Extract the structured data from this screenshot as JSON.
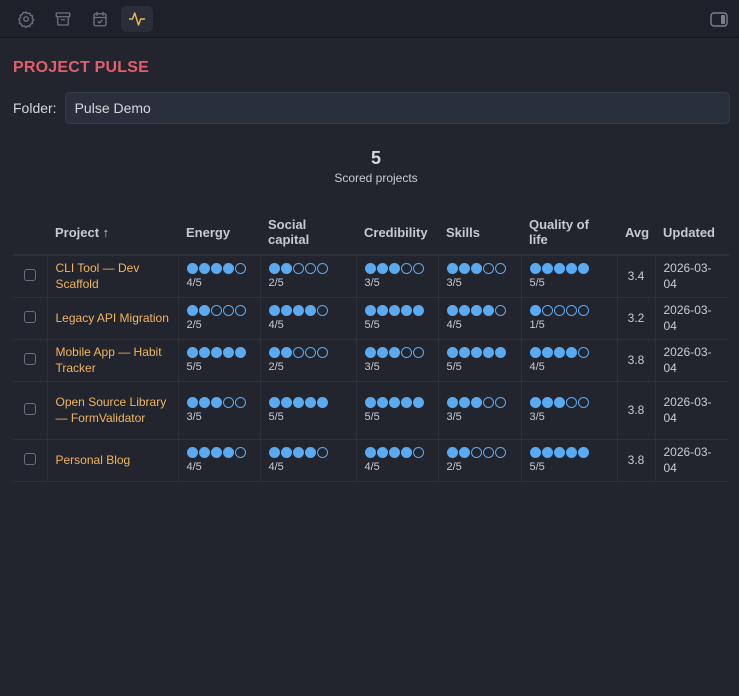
{
  "toolbar": {
    "buttons": [
      {
        "name": "settings",
        "icon": "gear-icon",
        "active": false
      },
      {
        "name": "archive",
        "icon": "archive-box-icon",
        "active": false
      },
      {
        "name": "calendar",
        "icon": "calendar-check-icon",
        "active": false
      },
      {
        "name": "pulse",
        "icon": "pulse-activity-icon",
        "active": true
      }
    ],
    "right_button": {
      "icon": "sidebar-toggle-icon"
    }
  },
  "colors": {
    "title": "#e45d6e",
    "project_link": "#f2b45c",
    "dot": "#5aaaf2",
    "active_icon": "#f2b45c",
    "background": "#22252e"
  },
  "header": {
    "title": "PROJECT PULSE"
  },
  "folder": {
    "label": "Folder:",
    "value": "Pulse Demo"
  },
  "summary": {
    "count": "5",
    "label": "Scored projects"
  },
  "table": {
    "columns": [
      "Project ↑",
      "Energy",
      "Social capital",
      "Credibility",
      "Skills",
      "Quality of life",
      "Avg",
      "Updated"
    ],
    "rows": [
      {
        "project": "CLI Tool — Dev Scaffold",
        "energy": "4/5",
        "social_capital": "2/5",
        "credibility": "3/5",
        "skills": "3/5",
        "quality_of_life": "5/5",
        "avg": "3.4",
        "updated": "2026-03-04"
      },
      {
        "project": "Legacy API Migration",
        "energy": "2/5",
        "social_capital": "4/5",
        "credibility": "5/5",
        "skills": "4/5",
        "quality_of_life": "1/5",
        "avg": "3.2",
        "updated": "2026-03-04"
      },
      {
        "project": "Mobile App — Habit Tracker",
        "energy": "5/5",
        "social_capital": "2/5",
        "credibility": "3/5",
        "skills": "5/5",
        "quality_of_life": "4/5",
        "avg": "3.8",
        "updated": "2026-03-04"
      },
      {
        "project": "Open Source Library — FormValidator",
        "energy": "3/5",
        "social_capital": "5/5",
        "credibility": "5/5",
        "skills": "3/5",
        "quality_of_life": "3/5",
        "avg": "3.8",
        "updated": "2026-03-04"
      },
      {
        "project": "Personal Blog",
        "energy": "4/5",
        "social_capital": "4/5",
        "credibility": "4/5",
        "skills": "2/5",
        "quality_of_life": "5/5",
        "avg": "3.8",
        "updated": "2026-03-04"
      }
    ]
  }
}
